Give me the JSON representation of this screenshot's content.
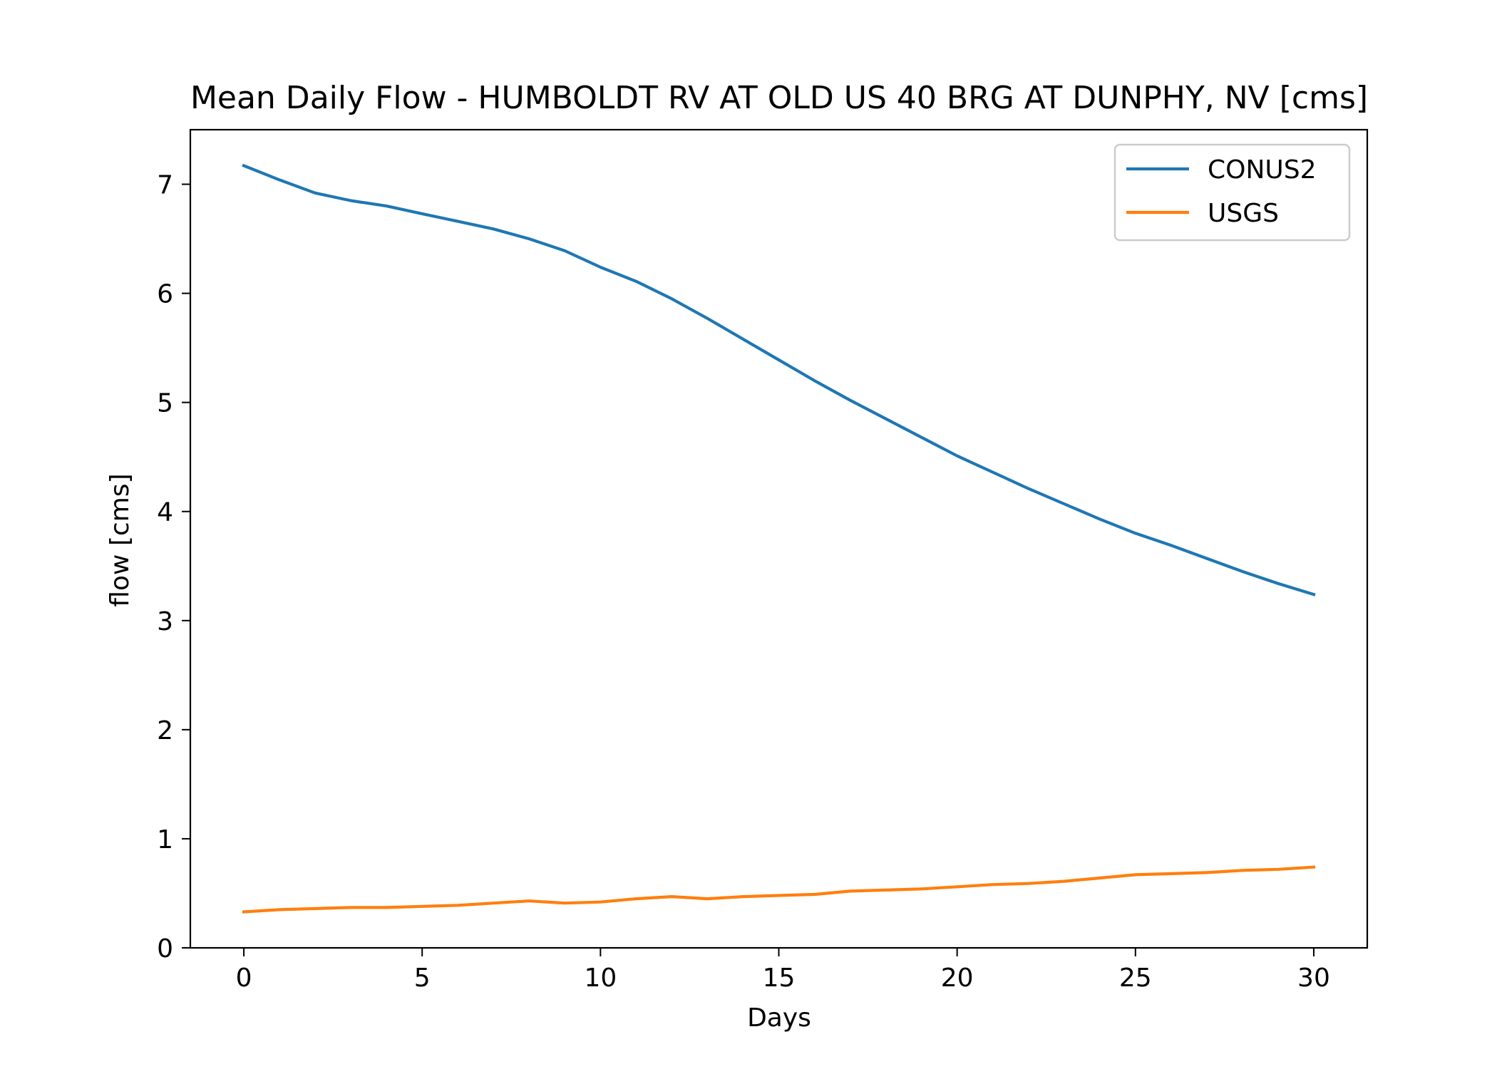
{
  "chart_data": {
    "type": "line",
    "title": "Mean Daily Flow - HUMBOLDT RV AT OLD US 40 BRG AT DUNPHY, NV [cms]",
    "xlabel": "Days",
    "ylabel": "flow [cms]",
    "xlim": [
      -1.5,
      31.5
    ],
    "ylim": [
      0,
      7.5
    ],
    "xticks": [
      0,
      5,
      10,
      15,
      20,
      25,
      30
    ],
    "yticks": [
      0,
      1,
      2,
      3,
      4,
      5,
      6,
      7
    ],
    "grid": false,
    "legend_position": "top-right",
    "x": [
      0,
      1,
      2,
      3,
      4,
      5,
      6,
      7,
      8,
      9,
      10,
      11,
      12,
      13,
      14,
      15,
      16,
      17,
      18,
      19,
      20,
      21,
      22,
      23,
      24,
      25,
      26,
      27,
      28,
      29,
      30
    ],
    "series": [
      {
        "name": "CONUS2",
        "color": "#1f77b4",
        "values": [
          7.17,
          7.04,
          6.92,
          6.85,
          6.8,
          6.73,
          6.66,
          6.59,
          6.5,
          6.39,
          6.24,
          6.11,
          5.95,
          5.77,
          5.58,
          5.39,
          5.2,
          5.02,
          4.85,
          4.68,
          4.51,
          4.36,
          4.21,
          4.07,
          3.93,
          3.8,
          3.69,
          3.57,
          3.45,
          3.34,
          3.24
        ]
      },
      {
        "name": "USGS",
        "color": "#ff7f0e",
        "values": [
          0.33,
          0.35,
          0.36,
          0.37,
          0.37,
          0.38,
          0.39,
          0.41,
          0.43,
          0.41,
          0.42,
          0.45,
          0.47,
          0.45,
          0.47,
          0.48,
          0.49,
          0.52,
          0.53,
          0.54,
          0.56,
          0.58,
          0.59,
          0.61,
          0.64,
          0.67,
          0.68,
          0.69,
          0.71,
          0.72,
          0.74
        ]
      }
    ]
  }
}
